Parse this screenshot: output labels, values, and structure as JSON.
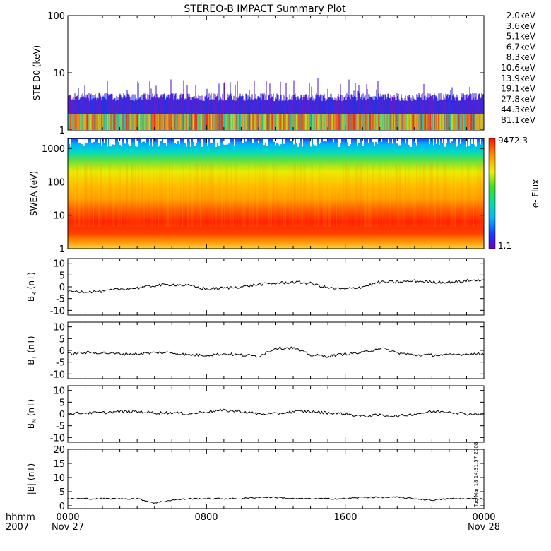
{
  "title": "STEREO-B IMPACT Summary Plot",
  "time_axis": {
    "row1": [
      "0000",
      "0800",
      "1600",
      "0000"
    ],
    "row2": [
      "Nov 27",
      "Nov 28"
    ],
    "corner_label_1": "hhmm",
    "corner_label_2": "2007"
  },
  "timestamp": "Tue Mar 18 14:31:57 2008",
  "chart_data": [
    {
      "type": "bar",
      "panel": "ste",
      "ylabel": "STE D0 (keV)",
      "yscale": "log",
      "ylim": [
        1,
        100
      ],
      "yticks": [
        "1",
        "10",
        "100"
      ],
      "grid": false,
      "legend_position": "right",
      "legend": [
        {
          "label": "2.0keV",
          "color": "#9b2fd6"
        },
        {
          "label": "3.6keV",
          "color": "#3a22c8"
        },
        {
          "label": "5.1keV",
          "color": "#2244ee"
        },
        {
          "label": "6.7keV",
          "color": "#22b8e8"
        },
        {
          "label": "8.3keV",
          "color": "#22d8c0"
        },
        {
          "label": "10.6keV",
          "color": "#22d860"
        },
        {
          "label": "13.9keV",
          "color": "#3cc820"
        },
        {
          "label": "19.1keV",
          "color": "#b8e020"
        },
        {
          "label": "27.8keV",
          "color": "#f0d020"
        },
        {
          "label": "44.3keV",
          "color": "#f09020"
        },
        {
          "label": "81.1keV",
          "color": "#e83a20"
        }
      ]
    },
    {
      "type": "heatmap",
      "panel": "swea",
      "ylabel": "SWEA (eV)",
      "yscale": "log",
      "ylim": [
        1,
        2000
      ],
      "yticks": [
        "1",
        "10",
        "100",
        "1000"
      ],
      "colorbar": {
        "label": "e- Flux",
        "max": "9472.3",
        "min": "1.1"
      }
    },
    {
      "type": "line",
      "panel": "br",
      "ylabel": "B_R (nT)",
      "ylim": [
        -12,
        12
      ],
      "yticks": [
        "-10",
        "-5",
        "0",
        "5",
        "10"
      ],
      "series": [
        {
          "x": [
            0,
            1,
            2,
            3,
            4,
            5,
            6,
            7,
            8,
            9,
            10,
            11,
            12,
            13,
            14,
            15,
            16,
            17,
            18,
            19,
            20,
            21,
            22,
            23,
            24
          ],
          "y": [
            -2,
            -2,
            -2,
            -1,
            -0.5,
            0.5,
            1,
            0.5,
            -1,
            -0.5,
            0,
            1,
            1.5,
            2,
            1.5,
            -0.5,
            -1,
            0,
            2,
            2,
            2.5,
            2,
            2,
            2.5,
            3
          ]
        }
      ]
    },
    {
      "type": "line",
      "panel": "bt",
      "ylabel": "B_T (nT)",
      "ylim": [
        -12,
        12
      ],
      "yticks": [
        "-10",
        "-5",
        "0",
        "5",
        "10"
      ],
      "series": [
        {
          "x": [
            0,
            1,
            2,
            3,
            4,
            5,
            6,
            7,
            8,
            9,
            10,
            11,
            12,
            13,
            14,
            15,
            16,
            17,
            18,
            19,
            20,
            21,
            22,
            23,
            24
          ],
          "y": [
            -1.5,
            -1,
            -1,
            -1.5,
            -1.5,
            -1,
            -1,
            -2,
            -2,
            -1.5,
            -2,
            -2.5,
            1,
            1,
            -2,
            -2.5,
            -1.5,
            -1,
            1,
            -1,
            -2,
            -2,
            -2,
            -1.5,
            -1.5
          ]
        }
      ]
    },
    {
      "type": "line",
      "panel": "bn",
      "ylabel": "B_N (nT)",
      "ylim": [
        -12,
        12
      ],
      "yticks": [
        "-10",
        "-5",
        "0",
        "5",
        "10"
      ],
      "series": [
        {
          "x": [
            0,
            1,
            2,
            3,
            4,
            5,
            6,
            7,
            8,
            9,
            10,
            11,
            12,
            13,
            14,
            15,
            16,
            17,
            18,
            19,
            20,
            21,
            22,
            23,
            24
          ],
          "y": [
            0,
            0.5,
            0.5,
            1,
            1,
            0.5,
            0.5,
            0,
            1,
            1.5,
            1,
            0,
            0,
            1,
            1,
            0.5,
            0,
            -1,
            -0.5,
            -1,
            0,
            1,
            1,
            0,
            0
          ]
        }
      ]
    },
    {
      "type": "line",
      "panel": "bmag",
      "ylabel": "|B| (nT)",
      "ylim": [
        -1,
        20
      ],
      "yticks": [
        "0",
        "5",
        "10",
        "15",
        "20"
      ],
      "series": [
        {
          "x": [
            0,
            1,
            2,
            3,
            4,
            5,
            6,
            7,
            8,
            9,
            10,
            11,
            12,
            13,
            14,
            15,
            16,
            17,
            18,
            19,
            20,
            21,
            22,
            23,
            24
          ],
          "y": [
            2.5,
            2.5,
            2.5,
            2.5,
            2.5,
            1,
            2,
            2.5,
            2.5,
            2.5,
            2.5,
            3,
            3,
            2.5,
            2.5,
            2.5,
            2.5,
            3,
            3,
            3,
            2.5,
            2,
            2.5,
            2.5,
            2.5
          ]
        }
      ]
    }
  ]
}
